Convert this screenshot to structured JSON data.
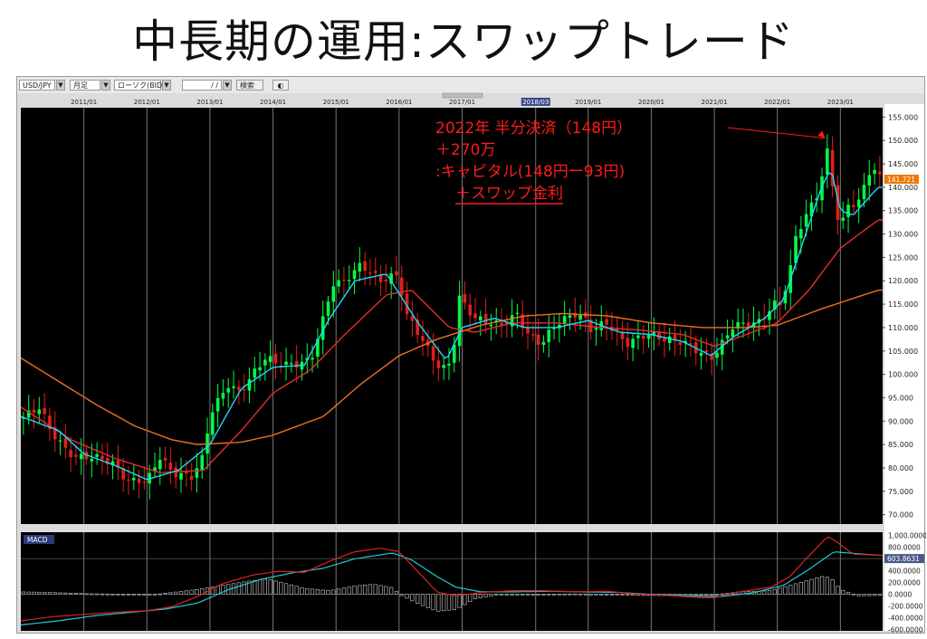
{
  "slide": {
    "title": "中長期の運用:スワップトレード"
  },
  "toolbar": {
    "symbol": "USD/JPY",
    "timeframe": "月足",
    "chart_type": "ローソク(BID)",
    "date": "/ /",
    "search": "検索",
    "arrow": "▼"
  },
  "annotation": {
    "color": "#ff1a1a",
    "lines": [
      "2022年 半分決済（148円）",
      "＋270万",
      ":キャピタル(148円ー93円)",
      "＋スワップ金利"
    ]
  },
  "price_badge": "141.721",
  "macd_label": "MACD",
  "macd_badge": "603.8631",
  "colors": {
    "up_candle": "#00ff44",
    "down_candle": "#e0201a",
    "ma_fast": "#20d8ff",
    "ma_mid": "#e03030",
    "ma_slow": "#f07020",
    "macd_line": "#e02020",
    "signal_line": "#20c8d8",
    "histogram": "#b0b0b0",
    "badge": "#f07800"
  },
  "chart_data": [
    {
      "type": "candlestick",
      "series": [
        {
          "name": "USD/JPY monthly",
          "kind": "candlestick"
        }
      ],
      "x_ticks": [
        "2011/01",
        "2012/01",
        "2013/01",
        "2014/01",
        "2015/01",
        "2016/01",
        "2017/01",
        "2018/03",
        "2019/01",
        "2020/01",
        "2021/01",
        "2022/01",
        "2023/01"
      ],
      "y_ticks": [
        "155.000",
        "150.000",
        "145.000",
        "140.000",
        "135.000",
        "130.000",
        "125.000",
        "120.000",
        "115.000",
        "110.000",
        "105.000",
        "100.000",
        "95.000",
        "90.000",
        "85.000",
        "80.000",
        "75.000",
        "70.000"
      ],
      "ylim": [
        68,
        157
      ],
      "xlim": [
        2010.0,
        2023.67
      ],
      "close_anchors": [
        [
          2010.0,
          90.5
        ],
        [
          2010.3,
          93.0
        ],
        [
          2010.45,
          88.5
        ],
        [
          2010.7,
          84.0
        ],
        [
          2010.9,
          82.0
        ],
        [
          2011.0,
          82.5
        ],
        [
          2011.3,
          82.0
        ],
        [
          2011.5,
          80.5
        ],
        [
          2011.7,
          77.0
        ],
        [
          2011.9,
          77.5
        ],
        [
          2012.0,
          77.0
        ],
        [
          2012.2,
          82.5
        ],
        [
          2012.4,
          79.0
        ],
        [
          2012.7,
          78.0
        ],
        [
          2012.9,
          82.5
        ],
        [
          2013.0,
          91.5
        ],
        [
          2013.3,
          98.0
        ],
        [
          2013.45,
          96.0
        ],
        [
          2013.6,
          98.5
        ],
        [
          2013.9,
          104.0
        ],
        [
          2014.0,
          102.5
        ],
        [
          2014.3,
          102.0
        ],
        [
          2014.6,
          103.0
        ],
        [
          2014.8,
          112.0
        ],
        [
          2014.95,
          119.5
        ],
        [
          2015.1,
          119.5
        ],
        [
          2015.4,
          123.5
        ],
        [
          2015.7,
          120.0
        ],
        [
          2015.9,
          121.0
        ],
        [
          2016.0,
          121.0
        ],
        [
          2016.1,
          113.0
        ],
        [
          2016.3,
          109.0
        ],
        [
          2016.6,
          102.0
        ],
        [
          2016.75,
          101.0
        ],
        [
          2016.85,
          104.0
        ],
        [
          2016.95,
          116.5
        ],
        [
          2017.2,
          112.0
        ],
        [
          2017.6,
          110.5
        ],
        [
          2017.9,
          113.0
        ],
        [
          2018.0,
          109.0
        ],
        [
          2018.25,
          106.5
        ],
        [
          2018.5,
          111.0
        ],
        [
          2018.8,
          113.0
        ],
        [
          2018.95,
          112.0
        ],
        [
          2019.0,
          109.5
        ],
        [
          2019.3,
          111.0
        ],
        [
          2019.6,
          106.5
        ],
        [
          2019.9,
          108.5
        ],
        [
          2020.0,
          108.5
        ],
        [
          2020.2,
          107.5
        ],
        [
          2020.5,
          107.0
        ],
        [
          2020.8,
          104.5
        ],
        [
          2020.95,
          103.5
        ],
        [
          2021.1,
          106.0
        ],
        [
          2021.3,
          110.5
        ],
        [
          2021.7,
          111.0
        ],
        [
          2021.95,
          115.0
        ],
        [
          2022.05,
          115.0
        ],
        [
          2022.2,
          122.0
        ],
        [
          2022.3,
          130.0
        ],
        [
          2022.5,
          135.0
        ],
        [
          2022.65,
          139.0
        ],
        [
          2022.8,
          148.0
        ],
        [
          2022.9,
          138.0
        ],
        [
          2023.0,
          130.5
        ],
        [
          2023.1,
          136.0
        ],
        [
          2023.3,
          137.0
        ],
        [
          2023.5,
          145.0
        ],
        [
          2023.6,
          142.0
        ]
      ],
      "ma_fast_anchors": [
        [
          2010.0,
          91.0
        ],
        [
          2010.6,
          88.0
        ],
        [
          2011.0,
          83.0
        ],
        [
          2011.5,
          80.5
        ],
        [
          2012.0,
          77.5
        ],
        [
          2012.5,
          79.5
        ],
        [
          2013.0,
          85.0
        ],
        [
          2013.5,
          97.0
        ],
        [
          2014.0,
          101.5
        ],
        [
          2014.5,
          102.0
        ],
        [
          2014.9,
          112.0
        ],
        [
          2015.3,
          120.0
        ],
        [
          2015.8,
          121.5
        ],
        [
          2016.3,
          111.0
        ],
        [
          2016.75,
          103.0
        ],
        [
          2017.0,
          110.0
        ],
        [
          2017.5,
          112.0
        ],
        [
          2018.0,
          110.0
        ],
        [
          2018.5,
          110.0
        ],
        [
          2019.0,
          111.5
        ],
        [
          2019.5,
          109.0
        ],
        [
          2020.0,
          108.5
        ],
        [
          2020.5,
          107.0
        ],
        [
          2020.95,
          104.0
        ],
        [
          2021.3,
          108.0
        ],
        [
          2021.8,
          112.0
        ],
        [
          2022.1,
          116.0
        ],
        [
          2022.4,
          128.0
        ],
        [
          2022.7,
          140.0
        ],
        [
          2022.85,
          144.0
        ],
        [
          2023.0,
          135.0
        ],
        [
          2023.2,
          134.0
        ],
        [
          2023.6,
          140.0
        ]
      ],
      "ma_mid_anchors": [
        [
          2010.0,
          93.0
        ],
        [
          2010.8,
          86.0
        ],
        [
          2011.5,
          82.0
        ],
        [
          2012.2,
          79.0
        ],
        [
          2012.9,
          79.5
        ],
        [
          2013.5,
          88.0
        ],
        [
          2014.0,
          96.0
        ],
        [
          2014.6,
          101.0
        ],
        [
          2015.1,
          108.0
        ],
        [
          2015.8,
          117.0
        ],
        [
          2016.2,
          118.0
        ],
        [
          2016.8,
          110.0
        ],
        [
          2017.2,
          109.0
        ],
        [
          2017.8,
          111.0
        ],
        [
          2018.5,
          111.0
        ],
        [
          2019.2,
          110.0
        ],
        [
          2019.8,
          109.5
        ],
        [
          2020.5,
          108.5
        ],
        [
          2021.0,
          106.0
        ],
        [
          2021.5,
          108.5
        ],
        [
          2022.0,
          111.0
        ],
        [
          2022.5,
          118.0
        ],
        [
          2023.0,
          127.0
        ],
        [
          2023.6,
          133.0
        ]
      ],
      "ma_slow_anchors": [
        [
          2010.0,
          103.5
        ],
        [
          2010.6,
          98.5
        ],
        [
          2011.2,
          93.5
        ],
        [
          2011.8,
          89.0
        ],
        [
          2012.4,
          86.0
        ],
        [
          2012.8,
          85.0
        ],
        [
          2013.5,
          85.5
        ],
        [
          2014.0,
          87.0
        ],
        [
          2014.8,
          91.0
        ],
        [
          2015.4,
          98.0
        ],
        [
          2016.0,
          104.0
        ],
        [
          2016.6,
          107.5
        ],
        [
          2017.3,
          110.5
        ],
        [
          2018.0,
          112.5
        ],
        [
          2018.6,
          113.0
        ],
        [
          2019.3,
          112.5
        ],
        [
          2020.0,
          111.0
        ],
        [
          2020.8,
          110.0
        ],
        [
          2021.5,
          110.0
        ],
        [
          2022.0,
          110.5
        ],
        [
          2022.7,
          114.0
        ],
        [
          2023.6,
          118.0
        ]
      ]
    },
    {
      "type": "line",
      "title": "MACD",
      "y_ticks": [
        "1,000.0000",
        "800.0000",
        "600.0000",
        "400.0000",
        "200.0000",
        "0.0000",
        "-200.0000",
        "-400.0000",
        "-600.0000"
      ],
      "ylim": [
        -620,
        1050
      ],
      "series": [
        {
          "kind": "macd",
          "anchors": [
            [
              2010.0,
              -450
            ],
            [
              2010.5,
              -380
            ],
            [
              2011.0,
              -340
            ],
            [
              2011.6,
              -300
            ],
            [
              2012.0,
              -280
            ],
            [
              2012.4,
              -210
            ],
            [
              2012.8,
              -40
            ],
            [
              2013.2,
              180
            ],
            [
              2013.7,
              330
            ],
            [
              2014.1,
              390
            ],
            [
              2014.5,
              370
            ],
            [
              2014.9,
              560
            ],
            [
              2015.3,
              720
            ],
            [
              2015.7,
              780
            ],
            [
              2016.0,
              720
            ],
            [
              2016.3,
              380
            ],
            [
              2016.6,
              40
            ],
            [
              2016.9,
              -30
            ],
            [
              2017.3,
              30
            ],
            [
              2017.8,
              60
            ],
            [
              2018.3,
              60
            ],
            [
              2018.8,
              40
            ],
            [
              2019.3,
              50
            ],
            [
              2019.8,
              0
            ],
            [
              2020.4,
              -30
            ],
            [
              2020.8,
              -60
            ],
            [
              2021.0,
              -60
            ],
            [
              2021.4,
              40
            ],
            [
              2021.9,
              120
            ],
            [
              2022.2,
              300
            ],
            [
              2022.5,
              650
            ],
            [
              2022.8,
              980
            ],
            [
              2022.95,
              880
            ],
            [
              2023.2,
              680
            ],
            [
              2023.6,
              660
            ]
          ]
        },
        {
          "kind": "signal",
          "anchors": [
            [
              2010.0,
              -520
            ],
            [
              2010.6,
              -450
            ],
            [
              2011.2,
              -360
            ],
            [
              2011.8,
              -300
            ],
            [
              2012.3,
              -250
            ],
            [
              2012.8,
              -150
            ],
            [
              2013.3,
              80
            ],
            [
              2013.8,
              250
            ],
            [
              2014.3,
              360
            ],
            [
              2014.8,
              440
            ],
            [
              2015.3,
              600
            ],
            [
              2015.9,
              700
            ],
            [
              2016.2,
              580
            ],
            [
              2016.6,
              300
            ],
            [
              2016.9,
              120
            ],
            [
              2017.3,
              40
            ],
            [
              2017.8,
              40
            ],
            [
              2018.4,
              50
            ],
            [
              2018.9,
              40
            ],
            [
              2019.5,
              30
            ],
            [
              2020.1,
              -10
            ],
            [
              2020.7,
              -30
            ],
            [
              2021.1,
              -40
            ],
            [
              2021.6,
              20
            ],
            [
              2022.1,
              150
            ],
            [
              2022.5,
              420
            ],
            [
              2022.9,
              720
            ],
            [
              2023.1,
              700
            ],
            [
              2023.6,
              660
            ]
          ]
        },
        {
          "kind": "histogram",
          "anchors": [
            [
              2010.0,
              40
            ],
            [
              2010.5,
              30
            ],
            [
              2011.0,
              10
            ],
            [
              2011.6,
              0
            ],
            [
              2012.0,
              -20
            ],
            [
              2012.4,
              30
            ],
            [
              2012.8,
              80
            ],
            [
              2013.2,
              150
            ],
            [
              2013.6,
              220
            ],
            [
              2013.9,
              260
            ],
            [
              2014.1,
              210
            ],
            [
              2014.5,
              100
            ],
            [
              2014.9,
              60
            ],
            [
              2015.3,
              140
            ],
            [
              2015.6,
              170
            ],
            [
              2015.9,
              110
            ],
            [
              2016.0,
              0
            ],
            [
              2016.3,
              -160
            ],
            [
              2016.6,
              -290
            ],
            [
              2016.9,
              -260
            ],
            [
              2017.2,
              -80
            ],
            [
              2017.6,
              0
            ],
            [
              2018.3,
              0
            ],
            [
              2018.8,
              5
            ],
            [
              2019.3,
              0
            ],
            [
              2019.8,
              -20
            ],
            [
              2020.5,
              -25
            ],
            [
              2021.0,
              -10
            ],
            [
              2021.4,
              40
            ],
            [
              2021.9,
              60
            ],
            [
              2022.2,
              150
            ],
            [
              2022.5,
              240
            ],
            [
              2022.7,
              300
            ],
            [
              2022.85,
              280
            ],
            [
              2023.0,
              80
            ],
            [
              2023.3,
              -30
            ],
            [
              2023.6,
              -20
            ]
          ]
        }
      ]
    }
  ]
}
